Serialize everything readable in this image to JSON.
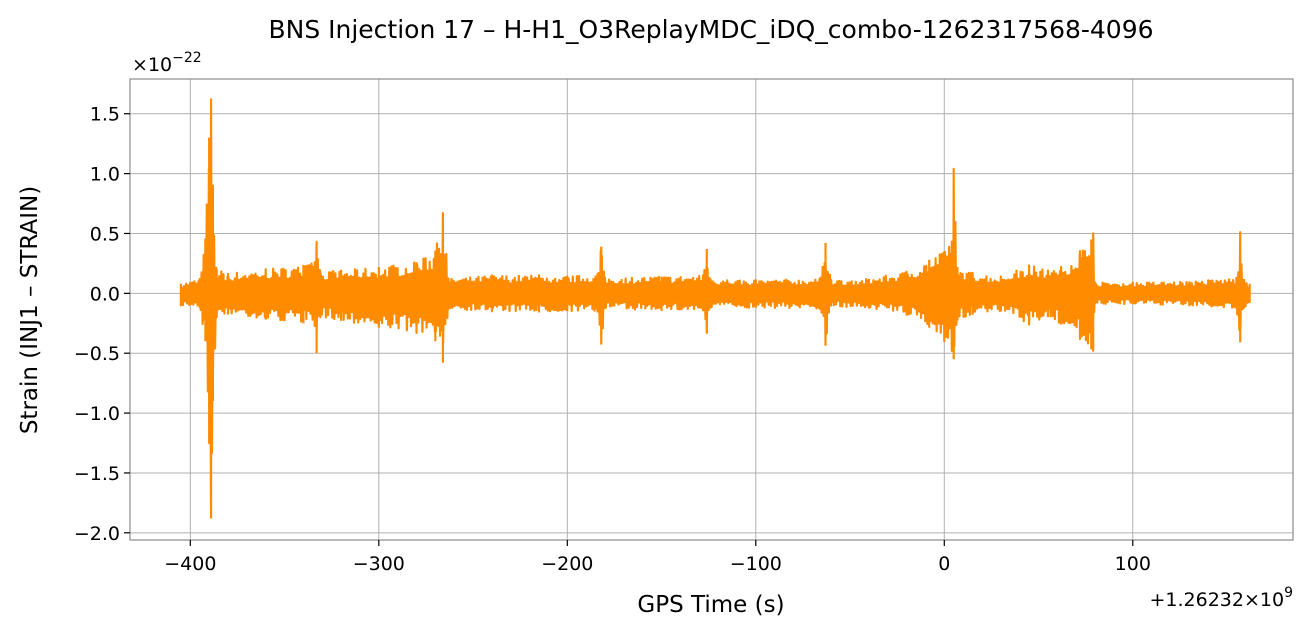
{
  "chart_data": {
    "type": "line",
    "title": "BNS Injection 17 – H-H1_O3ReplayMDC_iDQ_combo-1262317568-4096",
    "xlabel": "GPS Time (s)",
    "ylabel": "Strain (INJ1 – STRAIN)",
    "x_offset_text": "+1.26232×10",
    "x_offset_exponent": "9",
    "y_scale_text": "×10",
    "y_scale_exponent": "−22",
    "xlim": [
      -432,
      185
    ],
    "ylim": [
      -2.06,
      1.79
    ],
    "x_ticks": [
      -400,
      -300,
      -200,
      -100,
      0,
      100
    ],
    "x_tick_labels": [
      "−400",
      "−300",
      "−200",
      "−100",
      "0",
      "100"
    ],
    "y_ticks": [
      -2.0,
      -1.5,
      -1.0,
      -0.5,
      0.0,
      0.5,
      1.0,
      1.5
    ],
    "y_tick_labels": [
      "−2.0",
      "−1.5",
      "−1.0",
      "−0.5",
      "0.0",
      "0.5",
      "1.0",
      "1.5"
    ],
    "grid": true,
    "series": [
      {
        "color": "#ff8c00",
        "envelope": [
          {
            "x": -405,
            "hi": 0.08,
            "lo": -0.1
          },
          {
            "x": -395,
            "hi": 0.12,
            "lo": -0.12
          },
          {
            "x": -392,
            "hi": 0.45,
            "lo": -0.4
          },
          {
            "x": -390,
            "hi": 1.3,
            "lo": -1.25
          },
          {
            "x": -389,
            "hi": 1.62,
            "lo": -1.88
          },
          {
            "x": -388,
            "hi": 0.9,
            "lo": -0.9
          },
          {
            "x": -386,
            "hi": 0.2,
            "lo": -0.2
          },
          {
            "x": -380,
            "hi": 0.17,
            "lo": -0.17
          },
          {
            "x": -360,
            "hi": 0.2,
            "lo": -0.22
          },
          {
            "x": -340,
            "hi": 0.23,
            "lo": -0.25
          },
          {
            "x": -334,
            "hi": 0.26,
            "lo": -0.28
          },
          {
            "x": -333,
            "hi": 0.43,
            "lo": -0.5
          },
          {
            "x": -331,
            "hi": 0.18,
            "lo": -0.2
          },
          {
            "x": -320,
            "hi": 0.19,
            "lo": -0.23
          },
          {
            "x": -300,
            "hi": 0.22,
            "lo": -0.28
          },
          {
            "x": -280,
            "hi": 0.26,
            "lo": -0.33
          },
          {
            "x": -270,
            "hi": 0.35,
            "lo": -0.4
          },
          {
            "x": -266,
            "hi": 0.67,
            "lo": -0.58
          },
          {
            "x": -263,
            "hi": 0.12,
            "lo": -0.13
          },
          {
            "x": -240,
            "hi": 0.15,
            "lo": -0.15
          },
          {
            "x": -215,
            "hi": 0.15,
            "lo": -0.16
          },
          {
            "x": -200,
            "hi": 0.14,
            "lo": -0.15
          },
          {
            "x": -184,
            "hi": 0.16,
            "lo": -0.16
          },
          {
            "x": -182,
            "hi": 0.39,
            "lo": -0.42
          },
          {
            "x": -180,
            "hi": 0.13,
            "lo": -0.13
          },
          {
            "x": -150,
            "hi": 0.14,
            "lo": -0.14
          },
          {
            "x": -128,
            "hi": 0.15,
            "lo": -0.15
          },
          {
            "x": -126,
            "hi": 0.37,
            "lo": -0.33
          },
          {
            "x": -124,
            "hi": 0.12,
            "lo": -0.12
          },
          {
            "x": -100,
            "hi": 0.11,
            "lo": -0.12
          },
          {
            "x": -66,
            "hi": 0.12,
            "lo": -0.13
          },
          {
            "x": -63,
            "hi": 0.42,
            "lo": -0.43
          },
          {
            "x": -60,
            "hi": 0.11,
            "lo": -0.11
          },
          {
            "x": -40,
            "hi": 0.12,
            "lo": -0.12
          },
          {
            "x": -20,
            "hi": 0.18,
            "lo": -0.18
          },
          {
            "x": -8,
            "hi": 0.28,
            "lo": -0.28
          },
          {
            "x": 0,
            "hi": 0.35,
            "lo": -0.4
          },
          {
            "x": 4,
            "hi": 0.44,
            "lo": -0.48
          },
          {
            "x": 5,
            "hi": 1.04,
            "lo": -0.55
          },
          {
            "x": 7,
            "hi": 0.22,
            "lo": -0.22
          },
          {
            "x": 15,
            "hi": 0.17,
            "lo": -0.18
          },
          {
            "x": 30,
            "hi": 0.14,
            "lo": -0.15
          },
          {
            "x": 45,
            "hi": 0.24,
            "lo": -0.26
          },
          {
            "x": 55,
            "hi": 0.19,
            "lo": -0.2
          },
          {
            "x": 62,
            "hi": 0.22,
            "lo": -0.26
          },
          {
            "x": 72,
            "hi": 0.36,
            "lo": -0.38
          },
          {
            "x": 78,
            "hi": 0.45,
            "lo": -0.46
          },
          {
            "x": 79,
            "hi": 0.5,
            "lo": -0.48
          },
          {
            "x": 80,
            "hi": 0.09,
            "lo": -0.09
          },
          {
            "x": 100,
            "hi": 0.09,
            "lo": -0.09
          },
          {
            "x": 130,
            "hi": 0.1,
            "lo": -0.1
          },
          {
            "x": 155,
            "hi": 0.13,
            "lo": -0.13
          },
          {
            "x": 157,
            "hi": 0.51,
            "lo": -0.41
          },
          {
            "x": 159,
            "hi": 0.12,
            "lo": -0.12
          },
          {
            "x": 162,
            "hi": 0.08,
            "lo": -0.08
          }
        ]
      }
    ]
  }
}
